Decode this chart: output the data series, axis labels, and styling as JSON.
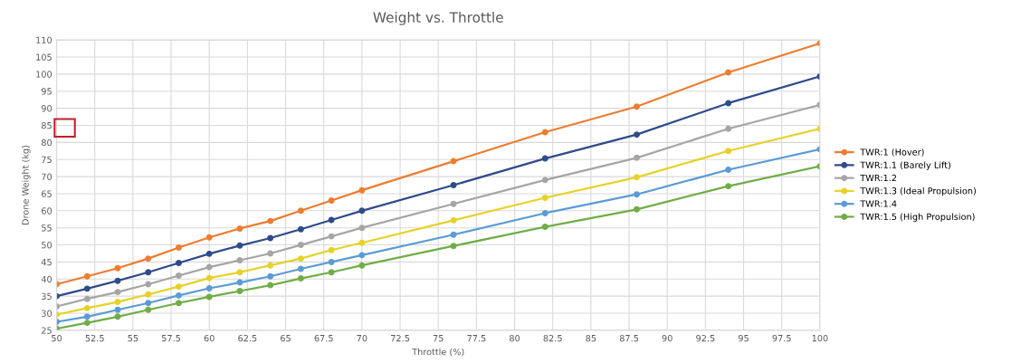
{
  "chart_data": {
    "type": "line",
    "title": "Weight vs. Throttle",
    "xlabel": "Throttle (%)",
    "ylabel": "Drone Weight (kg)",
    "x": [
      50,
      52,
      54,
      56,
      58,
      60,
      62,
      64,
      66,
      68,
      70,
      76,
      82,
      88,
      94,
      100
    ],
    "series": [
      {
        "name": "TWR:1 (Hover)",
        "color": "#ed7d31",
        "values": [
          38.5,
          40.8,
          43.2,
          46,
          49.2,
          52.2,
          54.8,
          57,
          60,
          63,
          66,
          74.5,
          83,
          90.5,
          100.5,
          109
        ]
      },
      {
        "name": "TWR:1.1 (Barely Lift)",
        "color": "#2f4b8a",
        "values": [
          35,
          37.2,
          39.5,
          42,
          44.7,
          47.4,
          49.8,
          52,
          54.6,
          57.3,
          60,
          67.5,
          75.3,
          82.3,
          91.5,
          99.3
        ]
      },
      {
        "name": "TWR:1.2",
        "color": "#a5a5a5",
        "values": [
          32,
          34.2,
          36.2,
          38.5,
          41,
          43.5,
          45.5,
          47.5,
          50,
          52.5,
          55,
          62,
          69,
          75.5,
          84,
          91
        ]
      },
      {
        "name": "TWR:1.3 (Ideal Propulsion)",
        "color": "#e6d228",
        "values": [
          29.6,
          31.5,
          33.3,
          35.5,
          37.8,
          40.3,
          42,
          44,
          46,
          48.5,
          50.6,
          57.2,
          63.8,
          69.8,
          77.5,
          84
        ]
      },
      {
        "name": "TWR:1.4",
        "color": "#5b9bd5",
        "values": [
          27.5,
          29,
          31,
          33,
          35.2,
          37.3,
          39,
          40.8,
          43,
          45,
          47,
          53,
          59.3,
          64.8,
          72,
          78
        ]
      },
      {
        "name": "TWR:1.5 (High Propulsion)",
        "color": "#70ad47",
        "values": [
          25.5,
          27.2,
          29,
          31,
          33,
          34.8,
          36.5,
          38.2,
          40.2,
          42,
          44,
          49.7,
          55.3,
          60.4,
          67.2,
          73
        ]
      }
    ],
    "xlim": [
      50,
      100
    ],
    "xticks": [
      50,
      52.5,
      55,
      57.5,
      60,
      62.5,
      65,
      67.5,
      70,
      72.5,
      75,
      77.5,
      80,
      82.5,
      85,
      87.5,
      90,
      92.5,
      95,
      97.5,
      100
    ],
    "ylim": [
      25,
      110
    ],
    "yticks": [
      25,
      30,
      35,
      40,
      45,
      50,
      55,
      60,
      65,
      70,
      75,
      80,
      85,
      90,
      95,
      100,
      105,
      110
    ],
    "grid": true,
    "legend": "right",
    "marker": "circle",
    "line_style": "solid"
  }
}
